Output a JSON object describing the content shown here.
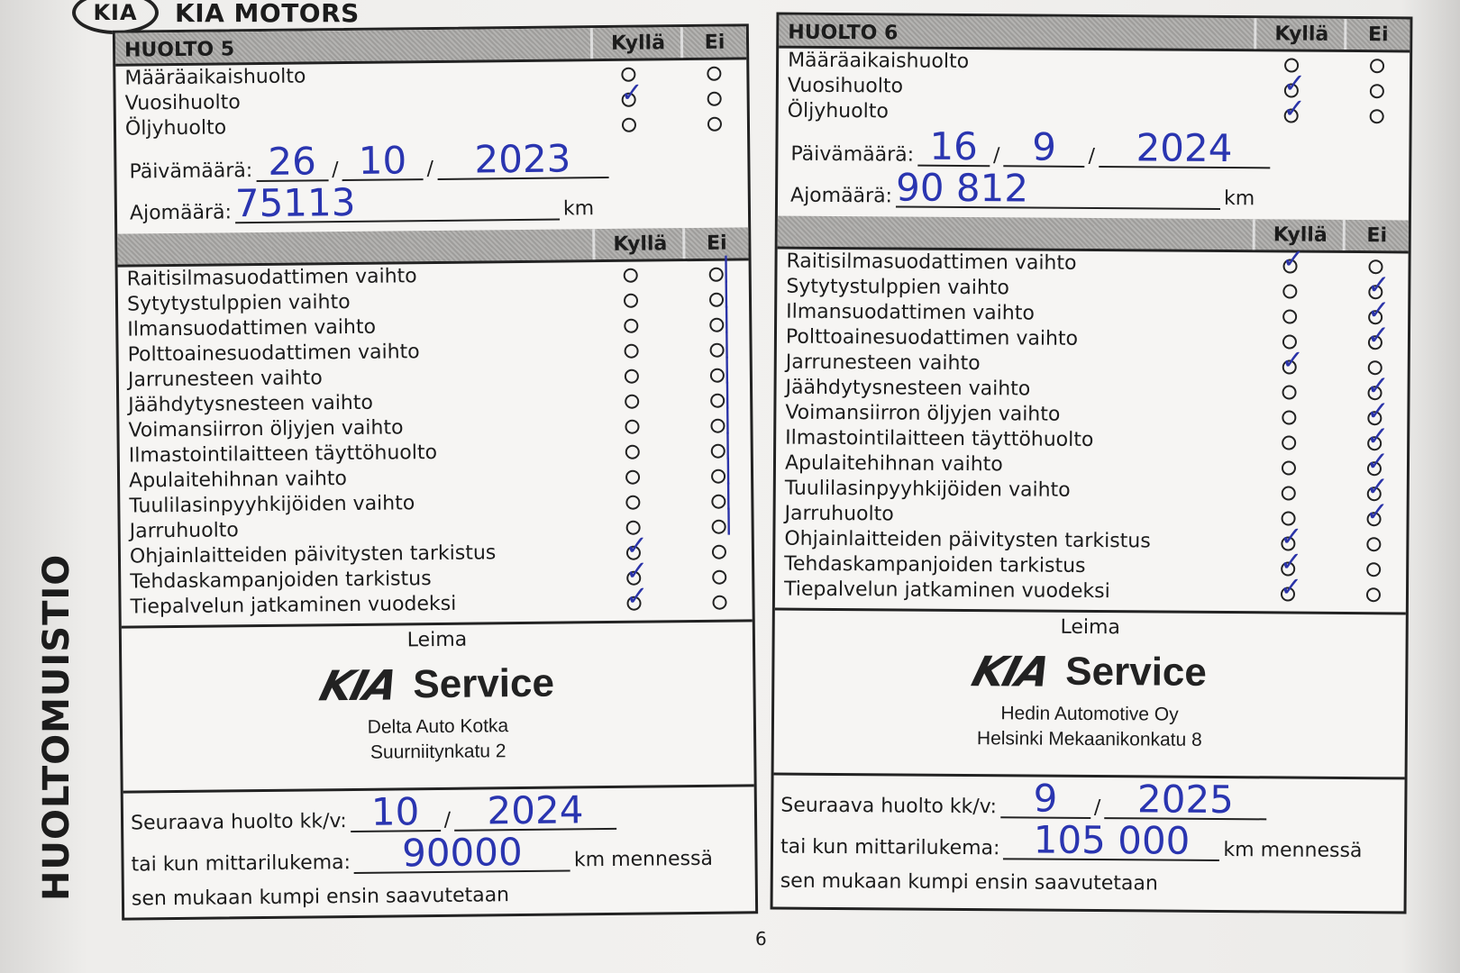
{
  "header": {
    "brand_logo": "KIA",
    "brand_text": "KIA MOTORS"
  },
  "side_title": "HUOLTOMUISTIO",
  "page_number": "6",
  "ink_color": "#2a35b0",
  "panels": [
    {
      "title": "HUOLTO 5",
      "yes_label": "Kyllä",
      "no_label": "Ei",
      "service_types": [
        {
          "label": "Määräaikaishuolto",
          "mark": ""
        },
        {
          "label": "Vuosihuolto",
          "mark": "yes"
        },
        {
          "label": "Öljyhuolto",
          "mark": ""
        }
      ],
      "date_label": "Päivämäärä:",
      "date_day": "26",
      "date_month": "10",
      "date_year": "2023",
      "mileage_label": "Ajomäärä:",
      "mileage": "75113",
      "km": "km",
      "checklist": [
        {
          "label": "Raitisilmasuodattimen vaihto",
          "mark": "no"
        },
        {
          "label": "Sytytystulppien vaihto",
          "mark": "no"
        },
        {
          "label": "Ilmansuodattimen vaihto",
          "mark": "no"
        },
        {
          "label": "Polttoainesuodattimen vaihto",
          "mark": "no"
        },
        {
          "label": "Jarrunesteen vaihto",
          "mark": "no"
        },
        {
          "label": "Jäähdytysnesteen vaihto",
          "mark": "no"
        },
        {
          "label": "Voimansiirron öljyjen vaihto",
          "mark": "no"
        },
        {
          "label": "Ilmastointilaitteen täyttöhuolto",
          "mark": "no"
        },
        {
          "label": "Apulaitehihnan vaihto",
          "mark": "no"
        },
        {
          "label": "Tuulilasinpyyhkijöiden vaihto",
          "mark": "no"
        },
        {
          "label": "Jarruhuolto",
          "mark": "no"
        },
        {
          "label": "Ohjainlaitteiden päivitysten tarkistus",
          "mark": "yes"
        },
        {
          "label": "Tehdaskampanjoiden tarkistus",
          "mark": "yes"
        },
        {
          "label": "Tiepalvelun jatkaminen vuodeksi",
          "mark": "yes"
        }
      ],
      "stamp_label": "Leima",
      "stamp_logo": "KIA",
      "stamp_service": "Service",
      "stamp_name": "Delta Auto Kotka",
      "stamp_address": "Suurniitynkatu 2",
      "next_label": "Seuraava huolto kk/v:",
      "next_month": "10",
      "next_year": "2024",
      "odometer_label": "tai kun mittarilukema:",
      "next_km": "90000",
      "km_suffix": "km mennessä",
      "rule_text": "sen mukaan kumpi ensin saavutetaan"
    },
    {
      "title": "HUOLTO 6",
      "yes_label": "Kyllä",
      "no_label": "Ei",
      "service_types": [
        {
          "label": "Määräaikaishuolto",
          "mark": ""
        },
        {
          "label": "Vuosihuolto",
          "mark": "yes"
        },
        {
          "label": "Öljyhuolto",
          "mark": "yes"
        }
      ],
      "date_label": "Päivämäärä:",
      "date_day": "16",
      "date_month": "9",
      "date_year": "2024",
      "mileage_label": "Ajomäärä:",
      "mileage": "90 812",
      "km": "km",
      "checklist": [
        {
          "label": "Raitisilmasuodattimen vaihto",
          "mark": "yes"
        },
        {
          "label": "Sytytystulppien vaihto",
          "mark": "no"
        },
        {
          "label": "Ilmansuodattimen vaihto",
          "mark": "no"
        },
        {
          "label": "Polttoainesuodattimen vaihto",
          "mark": "no"
        },
        {
          "label": "Jarrunesteen vaihto",
          "mark": "yes"
        },
        {
          "label": "Jäähdytysnesteen vaihto",
          "mark": "no"
        },
        {
          "label": "Voimansiirron öljyjen vaihto",
          "mark": "no"
        },
        {
          "label": "Ilmastointilaitteen täyttöhuolto",
          "mark": "no"
        },
        {
          "label": "Apulaitehihnan vaihto",
          "mark": "no"
        },
        {
          "label": "Tuulilasinpyyhkijöiden vaihto",
          "mark": "no"
        },
        {
          "label": "Jarruhuolto",
          "mark": "no"
        },
        {
          "label": "Ohjainlaitteiden päivitysten tarkistus",
          "mark": "yes"
        },
        {
          "label": "Tehdaskampanjoiden tarkistus",
          "mark": "yes"
        },
        {
          "label": "Tiepalvelun jatkaminen vuodeksi",
          "mark": "yes"
        }
      ],
      "stamp_label": "Leima",
      "stamp_logo": "KIA",
      "stamp_service": "Service",
      "stamp_name": "Hedin Automotive Oy",
      "stamp_address": "Helsinki Mekaanikonkatu 8",
      "next_label": "Seuraava huolto kk/v:",
      "next_month": "9",
      "next_year": "2025",
      "odometer_label": "tai kun mittarilukema:",
      "next_km": "105 000",
      "km_suffix": "km mennessä",
      "rule_text": "sen mukaan kumpi ensin saavutetaan"
    }
  ]
}
